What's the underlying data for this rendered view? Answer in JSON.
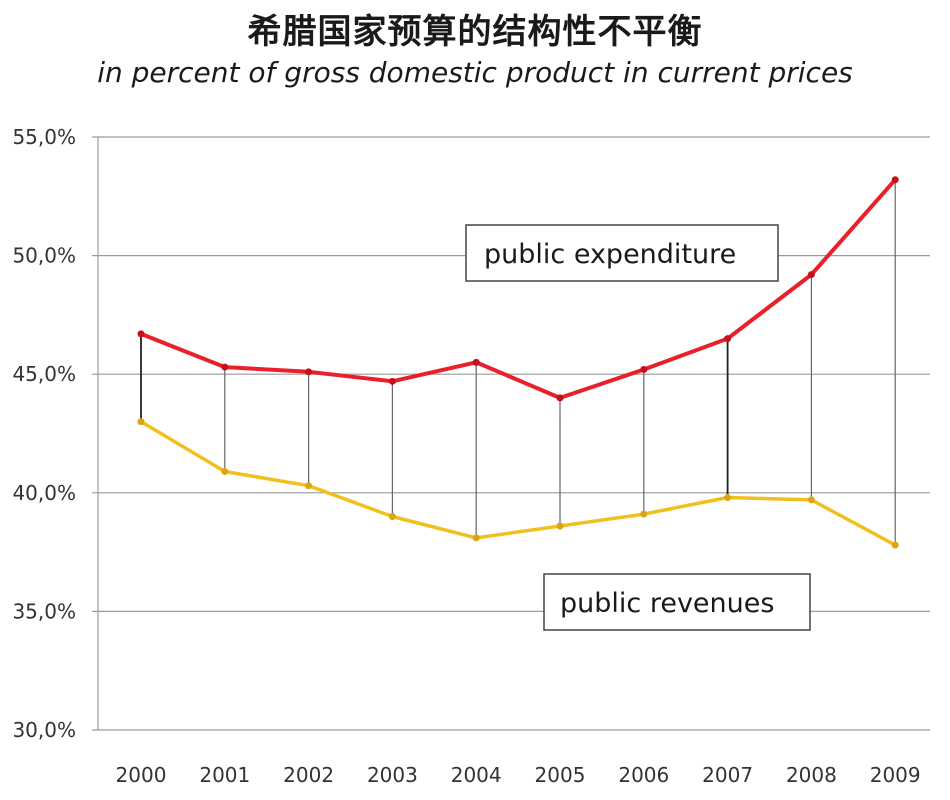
{
  "chart_data": {
    "type": "line",
    "title": "希腊国家预算的结构性不平衡",
    "subtitle": "in percent of gross domestic product in current prices",
    "categories": [
      "2000",
      "2001",
      "2002",
      "2003",
      "2004",
      "2005",
      "2006",
      "2007",
      "2008",
      "2009"
    ],
    "series": [
      {
        "name": "public expenditure",
        "color": "#e8202a",
        "values": [
          46.7,
          45.3,
          45.1,
          44.7,
          45.5,
          44.0,
          45.2,
          46.5,
          49.2,
          53.2
        ]
      },
      {
        "name": "public revenues",
        "color": "#f2c01e",
        "values": [
          43.0,
          40.9,
          40.3,
          39.0,
          38.1,
          38.6,
          39.1,
          39.8,
          39.7,
          37.8
        ]
      }
    ],
    "ylim": [
      30,
      55
    ],
    "yticks": [
      55,
      50,
      45,
      40,
      35,
      30
    ],
    "ytick_labels": [
      "55,0%",
      "50,0%",
      "45,0%",
      "40,0%",
      "35,0%",
      "30,0%"
    ],
    "grid": true,
    "xlabel": "",
    "ylabel": ""
  }
}
